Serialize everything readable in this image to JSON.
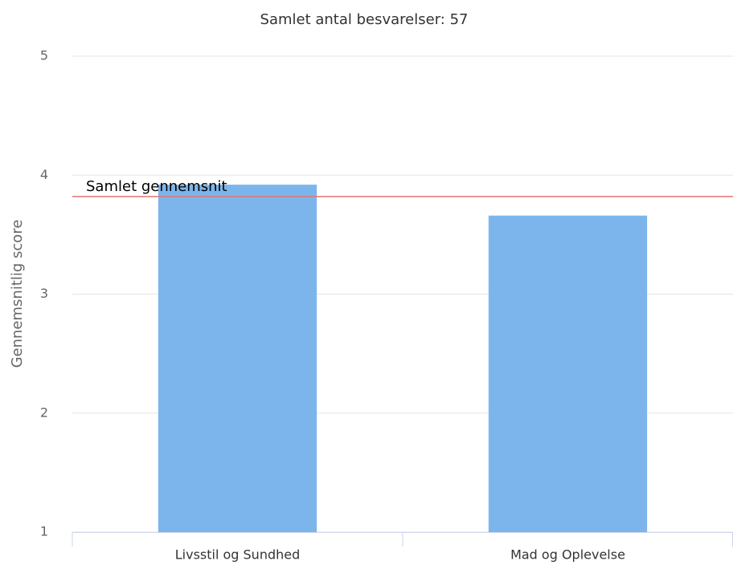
{
  "chart_data": {
    "type": "bar",
    "title": "Samlet antal besvarelser: 57",
    "y_label": "Gennemsnitlig score",
    "categories": [
      "Livsstil og Sundhed",
      "Mad og Oplevelse"
    ],
    "values": [
      3.92,
      3.66
    ],
    "color": "#7cb5ec",
    "ylim": [
      1,
      5
    ],
    "yticks": [
      1,
      2,
      3,
      4,
      5
    ],
    "grid": true,
    "reference_line": {
      "label": "Samlet gennemsnit",
      "value": 3.82,
      "color": "#e57373"
    }
  }
}
